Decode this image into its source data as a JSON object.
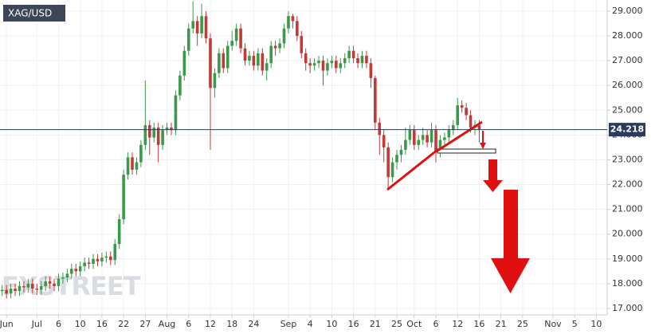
{
  "chart_data": {
    "type": "candlestick",
    "title": "XAG/USD",
    "watermark": "FXSTREET",
    "x": [
      0,
      1,
      2,
      3,
      4,
      5,
      6,
      7,
      8,
      9,
      10,
      11,
      12,
      13,
      14,
      15,
      16,
      17,
      18,
      19,
      20,
      21,
      22,
      23,
      24,
      25,
      26,
      27,
      28,
      29,
      30,
      31,
      32,
      33,
      34,
      35,
      36,
      37,
      38,
      39,
      40,
      41,
      42,
      43,
      44,
      45,
      46,
      47,
      48,
      49,
      50,
      51,
      52,
      53,
      54,
      55,
      56,
      57,
      58,
      59,
      60,
      61,
      62,
      63,
      64,
      65,
      66,
      67,
      68,
      69,
      70,
      71,
      72,
      73,
      74,
      75,
      76,
      77,
      78,
      79,
      80,
      81,
      82,
      83,
      84,
      85,
      86,
      87,
      88,
      89,
      90,
      91,
      92,
      93,
      94,
      95,
      96,
      97,
      98,
      99,
      100,
      101,
      102,
      103,
      104,
      105,
      106,
      107,
      108,
      109,
      110
    ],
    "open": [
      17.7,
      17.75,
      17.6,
      17.8,
      17.7,
      17.9,
      17.85,
      18.0,
      17.8,
      17.75,
      17.9,
      18.1,
      18.0,
      17.9,
      18.2,
      18.25,
      18.4,
      18.6,
      18.5,
      18.7,
      18.85,
      18.8,
      19.0,
      18.9,
      19.05,
      19.1,
      18.95,
      19.6,
      20.6,
      22.4,
      23.1,
      22.6,
      22.9,
      23.6,
      24.4,
      23.9,
      24.3,
      23.6,
      24.2,
      24.3,
      24.2,
      25.6,
      26.4,
      27.4,
      28.3,
      28.6,
      28.1,
      28.8,
      27.9,
      25.9,
      26.5,
      27.3,
      26.7,
      27.6,
      27.8,
      28.3,
      27.5,
      27.0,
      27.2,
      26.8,
      27.3,
      26.6,
      26.9,
      27.6,
      27.5,
      27.7,
      28.3,
      28.8,
      28.6,
      28.0,
      27.3,
      26.9,
      26.8,
      26.9,
      27.0,
      26.6,
      26.9,
      27.0,
      26.7,
      26.9,
      27.1,
      27.4,
      27.1,
      26.9,
      27.2,
      26.9,
      26.3,
      24.5,
      24.0,
      23.5,
      22.3,
      22.9,
      23.2,
      23.4,
      23.8,
      24.2,
      23.6,
      23.8,
      24.0,
      23.7,
      24.2,
      23.3,
      23.8,
      23.9,
      24.2,
      24.4,
      25.2,
      25.1,
      24.8,
      24.3,
      24.4
    ],
    "high": [
      17.95,
      17.95,
      18.0,
      18.0,
      18.1,
      18.1,
      18.2,
      18.2,
      18.0,
      18.1,
      18.3,
      18.3,
      18.2,
      18.4,
      18.45,
      18.6,
      18.8,
      18.8,
      18.9,
      19.05,
      19.05,
      19.2,
      19.2,
      19.25,
      19.3,
      19.3,
      19.8,
      20.8,
      22.6,
      23.3,
      23.3,
      23.1,
      23.8,
      26.2,
      24.6,
      24.5,
      24.5,
      24.4,
      24.5,
      24.5,
      25.8,
      26.6,
      27.6,
      28.5,
      29.4,
      28.8,
      29.3,
      29.0,
      28.1,
      26.7,
      27.5,
      27.5,
      27.8,
      28.2,
      28.5,
      28.5,
      27.7,
      27.4,
      27.4,
      27.5,
      27.5,
      27.1,
      27.8,
      27.8,
      27.9,
      28.5,
      29.0,
      28.9,
      28.8,
      28.2,
      27.5,
      27.1,
      27.1,
      27.2,
      27.2,
      27.1,
      27.2,
      27.2,
      27.1,
      27.3,
      27.6,
      27.6,
      27.3,
      27.4,
      27.4,
      27.1,
      26.4,
      24.7,
      24.2,
      23.7,
      23.1,
      23.4,
      23.6,
      24.3,
      24.4,
      24.4,
      24.0,
      24.3,
      24.2,
      24.5,
      24.4,
      24.0,
      24.1,
      24.4,
      24.6,
      25.5,
      25.4,
      25.3,
      25.0,
      24.6,
      24.6
    ],
    "low": [
      17.5,
      17.4,
      17.4,
      17.5,
      17.5,
      17.65,
      17.65,
      17.6,
      17.55,
      17.55,
      17.7,
      17.8,
      17.7,
      17.7,
      18.0,
      18.05,
      18.2,
      18.3,
      18.3,
      18.5,
      18.6,
      18.6,
      18.7,
      18.7,
      18.85,
      18.75,
      18.75,
      19.4,
      20.4,
      22.2,
      22.4,
      22.4,
      22.7,
      23.4,
      23.2,
      23.7,
      22.9,
      23.4,
      24.0,
      24.0,
      24.0,
      25.4,
      26.2,
      27.2,
      28.1,
      27.6,
      27.9,
      27.7,
      23.4,
      25.5,
      26.3,
      26.5,
      26.5,
      27.4,
      27.6,
      27.3,
      26.8,
      26.8,
      26.6,
      26.6,
      26.4,
      26.2,
      26.7,
      27.2,
      27.3,
      27.5,
      28.1,
      28.3,
      27.8,
      27.1,
      26.6,
      26.5,
      26.6,
      26.7,
      26.0,
      26.4,
      26.7,
      26.5,
      26.5,
      26.7,
      26.9,
      26.9,
      26.7,
      26.7,
      26.7,
      25.9,
      24.2,
      23.2,
      22.9,
      21.8,
      22.1,
      22.6,
      22.9,
      23.2,
      23.6,
      23.4,
      23.4,
      23.6,
      23.5,
      23.5,
      22.9,
      23.1,
      23.6,
      23.7,
      24.0,
      24.2,
      24.9,
      24.6,
      24.1,
      24.0,
      23.7
    ],
    "close": [
      17.75,
      17.6,
      17.8,
      17.7,
      17.9,
      17.85,
      18.0,
      17.8,
      17.75,
      17.9,
      18.1,
      18.0,
      17.9,
      18.2,
      18.25,
      18.4,
      18.6,
      18.5,
      18.7,
      18.85,
      18.8,
      19.0,
      18.9,
      19.05,
      19.1,
      18.95,
      19.6,
      20.6,
      22.4,
      23.1,
      22.6,
      22.9,
      23.6,
      24.4,
      23.9,
      24.3,
      23.6,
      24.2,
      24.3,
      24.2,
      25.6,
      26.4,
      27.4,
      28.3,
      28.6,
      28.1,
      28.8,
      27.9,
      25.9,
      26.5,
      27.3,
      26.7,
      27.6,
      27.8,
      28.3,
      27.5,
      27.0,
      27.2,
      26.8,
      27.3,
      26.6,
      26.9,
      27.6,
      27.5,
      27.7,
      28.3,
      28.8,
      28.6,
      28.0,
      27.3,
      26.9,
      26.8,
      26.9,
      27.0,
      26.6,
      26.9,
      27.0,
      26.7,
      26.9,
      27.1,
      27.4,
      27.1,
      26.9,
      27.2,
      26.9,
      26.3,
      24.5,
      24.0,
      23.5,
      22.3,
      22.9,
      23.2,
      23.4,
      23.8,
      24.2,
      23.6,
      23.8,
      24.0,
      23.7,
      24.2,
      23.3,
      23.8,
      23.9,
      24.2,
      24.4,
      25.2,
      25.1,
      24.8,
      24.3,
      24.4,
      24.22
    ],
    "up_color": "#3a9a4a",
    "down_color": "#c23a36",
    "xlim": [
      -0.5,
      139.5
    ],
    "xticks": [
      {
        "value": 1,
        "label": "Jun"
      },
      {
        "value": 8,
        "label": "Jul"
      },
      {
        "value": 13,
        "label": "6"
      },
      {
        "value": 18,
        "label": "10"
      },
      {
        "value": 23,
        "label": "16"
      },
      {
        "value": 28,
        "label": "22"
      },
      {
        "value": 33,
        "label": "27"
      },
      {
        "value": 38,
        "label": "Aug"
      },
      {
        "value": 43,
        "label": "6"
      },
      {
        "value": 48,
        "label": "12"
      },
      {
        "value": 53,
        "label": "18"
      },
      {
        "value": 58,
        "label": "24"
      },
      {
        "value": 66,
        "label": "Sep"
      },
      {
        "value": 71,
        "label": "4"
      },
      {
        "value": 76,
        "label": "10"
      },
      {
        "value": 81,
        "label": "16"
      },
      {
        "value": 86,
        "label": "21"
      },
      {
        "value": 91,
        "label": "25"
      },
      {
        "value": 95,
        "label": "Oct"
      },
      {
        "value": 100,
        "label": "6"
      },
      {
        "value": 105,
        "label": "12"
      },
      {
        "value": 110,
        "label": "16"
      },
      {
        "value": 115,
        "label": "21"
      },
      {
        "value": 120,
        "label": "25"
      },
      {
        "value": 127,
        "label": "Nov"
      },
      {
        "value": 132,
        "label": "5"
      },
      {
        "value": 137,
        "label": "10"
      }
    ],
    "ylim": [
      16.74,
      29.45
    ],
    "yticks": [
      {
        "value": 17,
        "label": "17.000"
      },
      {
        "value": 18,
        "label": "18.000"
      },
      {
        "value": 19,
        "label": "19.000"
      },
      {
        "value": 20,
        "label": "20.000"
      },
      {
        "value": 21,
        "label": "21.000"
      },
      {
        "value": 22,
        "label": "22.000"
      },
      {
        "value": 23,
        "label": "23.000"
      },
      {
        "value": 24,
        "label": "24.000"
      },
      {
        "value": 25,
        "label": "25.000"
      },
      {
        "value": 26,
        "label": "26.000"
      },
      {
        "value": 27,
        "label": "27.000"
      },
      {
        "value": 28,
        "label": "28.000"
      },
      {
        "value": 29,
        "label": "29.000"
      }
    ],
    "grid": true,
    "last_price": 24.218
  }
}
